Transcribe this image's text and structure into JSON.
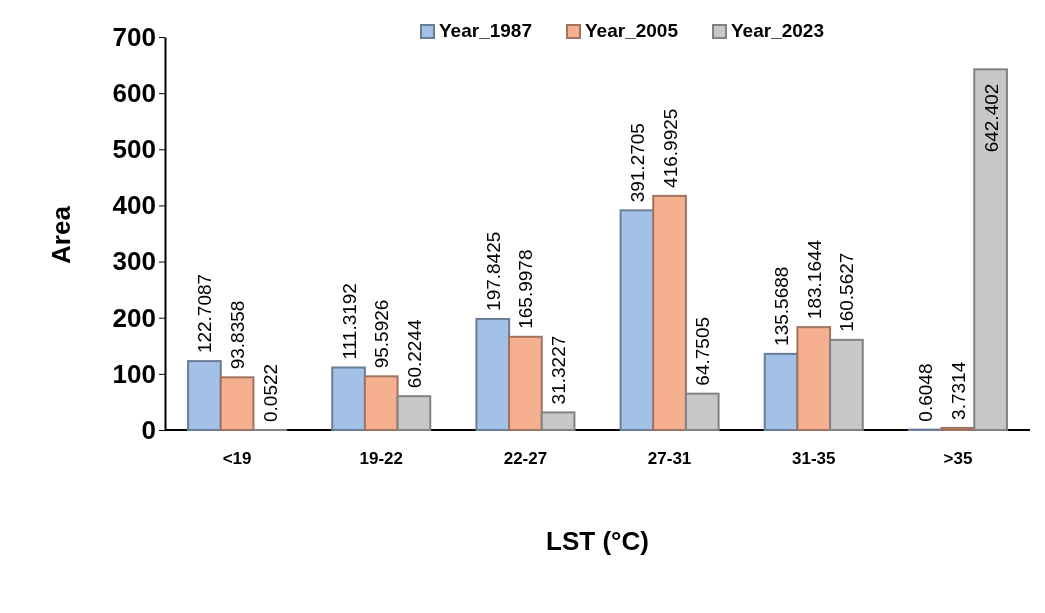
{
  "chart_data": {
    "type": "bar",
    "xlabel": "LST (°C)",
    "ylabel": "Area",
    "categories": [
      "<19",
      "19-22",
      "22-27",
      "27-31",
      "31-35",
      ">35"
    ],
    "series": [
      {
        "name": "Year_1987",
        "color": "#a3c0e6",
        "values": [
          122.7087,
          111.3192,
          197.8425,
          391.2705,
          135.5688,
          0.6048
        ]
      },
      {
        "name": "Year_2005",
        "color": "#f5b090",
        "values": [
          93.8358,
          95.5926,
          165.9978,
          416.9925,
          183.1644,
          3.7314
        ]
      },
      {
        "name": "Year_2023",
        "color": "#c8c8c8",
        "values": [
          0.0522,
          60.2244,
          31.3227,
          64.7505,
          160.5627,
          642.402
        ]
      }
    ],
    "ylim": [
      0,
      700
    ],
    "yticks": [
      0,
      100,
      200,
      300,
      400,
      500,
      600,
      700
    ],
    "data_labels": true,
    "legend": "top",
    "grid": false
  }
}
